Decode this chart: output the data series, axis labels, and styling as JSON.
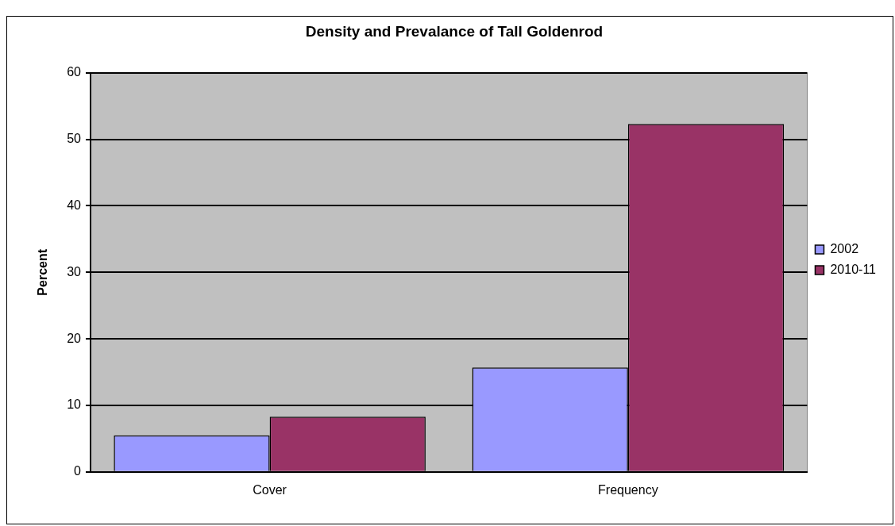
{
  "chart_data": {
    "type": "bar",
    "title": "Density and Prevalance of Tall Goldenrod",
    "ylabel": "Percent",
    "categories": [
      "Cover",
      "Frequency"
    ],
    "series": [
      {
        "name": "2002",
        "color": "#9999ff",
        "values": [
          5.5,
          15.7
        ]
      },
      {
        "name": "2010-11",
        "color": "#993366",
        "values": [
          8.3,
          52.3
        ]
      }
    ],
    "ylim": [
      0,
      60
    ],
    "yticks": [
      0,
      10,
      20,
      30,
      40,
      50,
      60
    ],
    "grid": "y",
    "legend": "right"
  }
}
